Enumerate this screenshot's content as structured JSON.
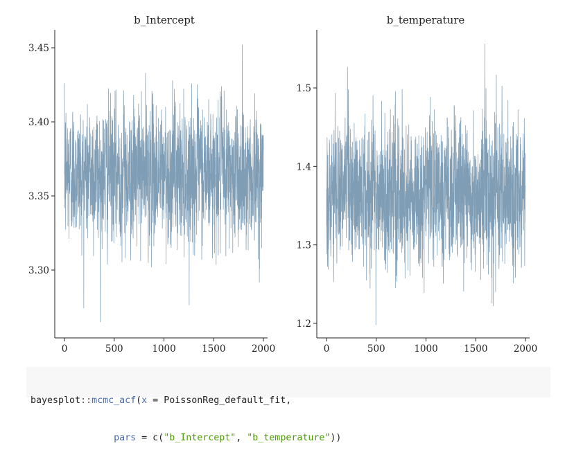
{
  "chart_data": [
    {
      "type": "line",
      "title": "b_Intercept",
      "xlabel": "",
      "ylabel": "",
      "xlim": [
        0,
        2000
      ],
      "ylim": [
        3.26,
        3.46
      ],
      "xticks": [
        "0",
        "500",
        "1000",
        "1500",
        "2000"
      ],
      "yticks": [
        "3.30",
        "3.35",
        "3.40",
        "3.45"
      ],
      "ytick_values": [
        3.3,
        3.35,
        3.4,
        3.45
      ],
      "center": 3.365,
      "spread": 0.022,
      "y_min": 3.265,
      "y_max": 3.452,
      "iterations": 2000,
      "grid": false,
      "color": "#7f9db5"
    },
    {
      "type": "line",
      "title": "b_temperature",
      "xlabel": "",
      "ylabel": "",
      "xlim": [
        0,
        2000
      ],
      "ylim": [
        1.19,
        1.56
      ],
      "xticks": [
        "0",
        "500",
        "1000",
        "1500",
        "2000"
      ],
      "yticks": [
        "1.2",
        "1.3",
        "1.4",
        "1.5"
      ],
      "ytick_values": [
        1.2,
        1.3,
        1.4,
        1.5
      ],
      "center": 1.365,
      "spread": 0.045,
      "y_min": 1.198,
      "y_max": 1.556,
      "iterations": 2000,
      "grid": false,
      "color": "#7f9db5"
    }
  ],
  "code": {
    "line1": {
      "pkg": "bayesplot",
      "sep": "::",
      "fn": "mcmc_acf",
      "open": "(",
      "arg": "x",
      "eq": " = ",
      "value": "PoissonReg_default_fit,"
    },
    "line2": {
      "indent": "               ",
      "arg": "pars",
      "eq": " = ",
      "fn": "c",
      "open": "(",
      "s1": "\"b_Intercept\"",
      "comma": ", ",
      "s2": "\"b_temperature\"",
      "close": "))"
    }
  }
}
